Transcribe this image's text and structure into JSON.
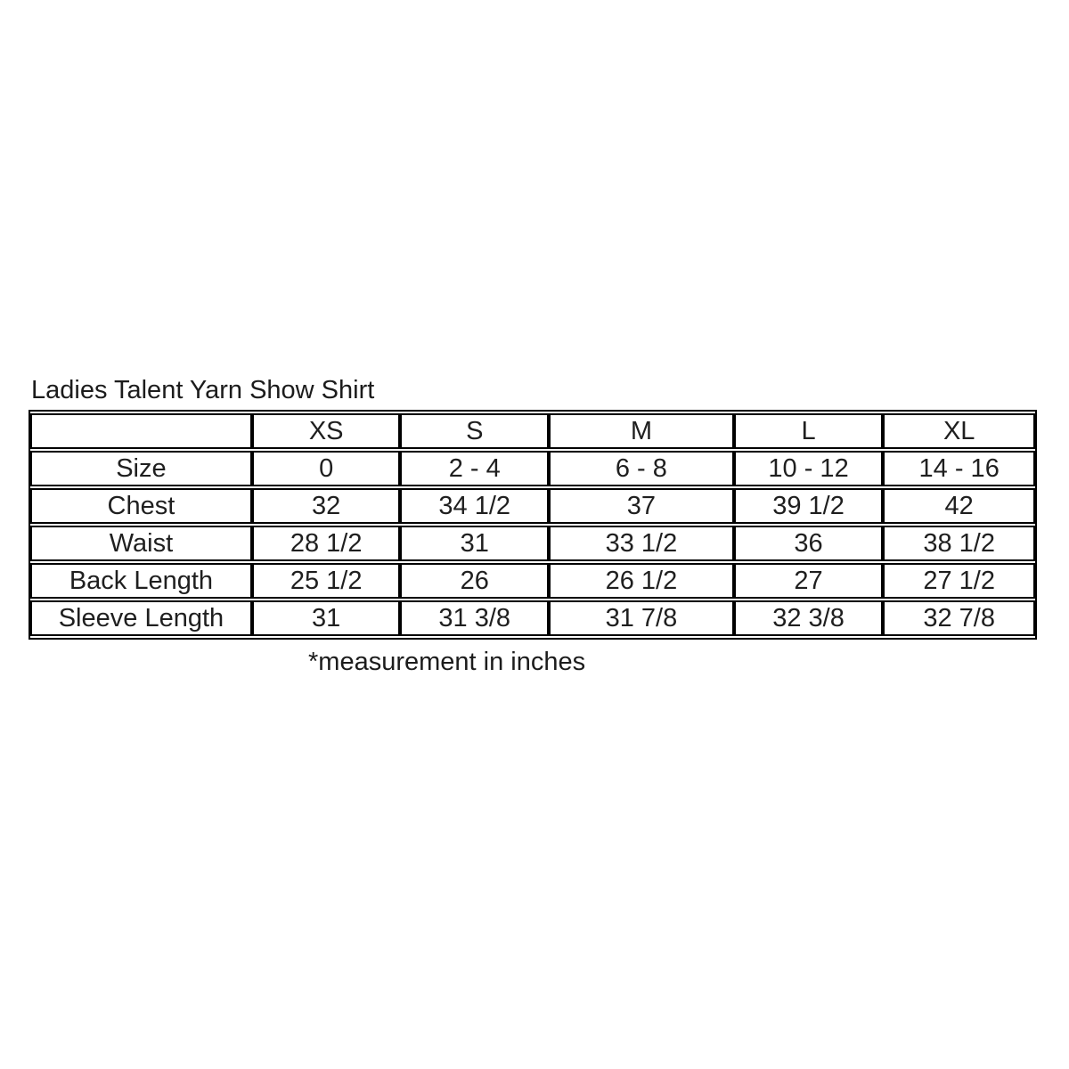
{
  "page": {
    "title": "Ladies Talent Yarn Show Shirt",
    "footnote": "*measurement in inches"
  },
  "chart_data": {
    "type": "table",
    "title": "Ladies Talent Yarn Show Shirt",
    "columns": [
      "",
      "XS",
      "S",
      "M",
      "L",
      "XL"
    ],
    "rows": [
      {
        "label": "Size",
        "values": [
          "0",
          "2 - 4",
          "6 - 8",
          "10 - 12",
          "14 - 16"
        ]
      },
      {
        "label": "Chest",
        "values": [
          "32",
          "34 1/2",
          "37",
          "39 1/2",
          "42"
        ]
      },
      {
        "label": "Waist",
        "values": [
          "28 1/2",
          "31",
          "33 1/2",
          "36",
          "38 1/2"
        ]
      },
      {
        "label": "Back Length",
        "values": [
          "25 1/2",
          "26",
          "26 1/2",
          "27",
          "27 1/2"
        ]
      },
      {
        "label": "Sleeve Length",
        "values": [
          "31",
          "31 3/8",
          "31 7/8",
          "32 3/8",
          "32 7/8"
        ]
      }
    ],
    "units_note": "*measurement in inches"
  }
}
